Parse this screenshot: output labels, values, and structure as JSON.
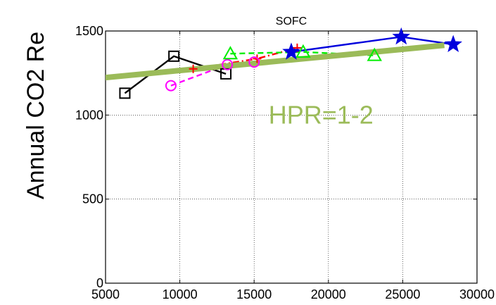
{
  "chart_data": {
    "type": "line",
    "title": "SOFC",
    "xlabel": "",
    "ylabel": "Annual CO2 Re",
    "xlim": [
      5000,
      30000
    ],
    "ylim": [
      0,
      1500
    ],
    "x_ticks": [
      "5000",
      "10000",
      "15000",
      "20000",
      "25000",
      "30000"
    ],
    "y_ticks": [
      "0",
      "500",
      "1000",
      "1500"
    ],
    "grid": true,
    "legend": "none",
    "annotation": {
      "text": "HPR=1-2",
      "x": 19500,
      "y": 1000,
      "color": "#9bbb59"
    },
    "series": [
      {
        "color": "#000000",
        "dash": "solid",
        "marker": "square",
        "x": [
          6300,
          9600,
          13100
        ],
        "y": [
          1130,
          1350,
          1245
        ]
      },
      {
        "color": "#ff0000",
        "dash": "dashdot",
        "marker": "plus",
        "x": [
          10900,
          15200,
          17900
        ],
        "y": [
          1275,
          1335,
          1400
        ]
      },
      {
        "color": "#ff00ff",
        "dash": "dashed",
        "marker": "circle",
        "x": [
          9400,
          13200,
          15000
        ],
        "y": [
          1175,
          1300,
          1315
        ]
      },
      {
        "color": "#00ee00",
        "dash": "dashed",
        "marker": "triangle",
        "x": [
          13400,
          18300,
          23100
        ],
        "y": [
          1365,
          1375,
          1355
        ]
      },
      {
        "color": "#0000dd",
        "dash": "solid",
        "marker": "star",
        "x": [
          17500,
          24900,
          28400
        ],
        "y": [
          1375,
          1465,
          1420
        ]
      }
    ],
    "trend": {
      "color": "#9bbb59",
      "x": [
        5000,
        27800
      ],
      "y": [
        1225,
        1415
      ]
    }
  }
}
